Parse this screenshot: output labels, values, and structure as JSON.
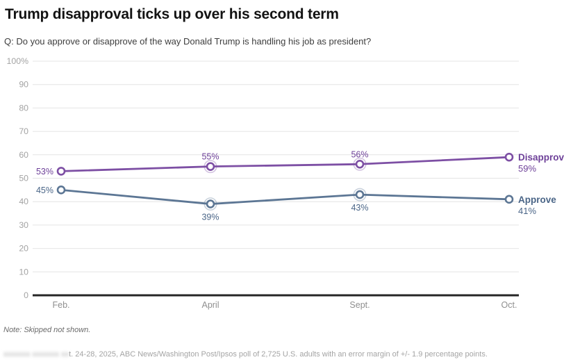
{
  "header": {
    "title": "Trump disapproval ticks up over his second term",
    "subtitle": "Q: Do you approve or disapprove of the way Donald Trump is handling his job as president?"
  },
  "chart_data": {
    "type": "line",
    "categories": [
      "Feb.",
      "April",
      "Sept.",
      "Oct."
    ],
    "series": [
      {
        "name": "Disapprove",
        "values": [
          53,
          55,
          56,
          59
        ],
        "point_labels": [
          "53%",
          "55%",
          "56%",
          "59%"
        ],
        "label_positions": [
          "left",
          "above",
          "above",
          "legend"
        ],
        "halo_points": [
          1,
          2
        ],
        "color": "#7d4fa4",
        "label_color": "#6e4199"
      },
      {
        "name": "Approve",
        "values": [
          45,
          39,
          43,
          41
        ],
        "point_labels": [
          "45%",
          "39%",
          "43%",
          "41%"
        ],
        "label_positions": [
          "left",
          "below",
          "below",
          "legend"
        ],
        "halo_points": [
          1,
          2
        ],
        "color": "#5c7694",
        "label_color": "#4a6587"
      }
    ],
    "yticks": {
      "values": [
        100,
        90,
        80,
        70,
        60,
        50,
        40,
        30,
        20,
        10,
        0
      ],
      "labels": [
        "100%",
        "90",
        "80",
        "70",
        "60",
        "50",
        "40",
        "30",
        "20",
        "10",
        "0"
      ]
    },
    "ylim": [
      0,
      100
    ],
    "grid": true,
    "legend_position": "right-of-line-end",
    "colors": {
      "gridline": "#e4e4e4",
      "axis": "#262626",
      "ytick_label": "#a3a3a3",
      "xtick_label": "#8f8f8f"
    }
  },
  "footer": {
    "note": "Note: Skipped not shown.",
    "source_redacted_placeholder": "xxxxxxx xxxxxxx xx",
    "source_visible": "t. 24-28, 2025, ABC News/Washington Post/Ipsos poll of 2,725 U.S. adults with an error margin of +/- 1.9 percentage points."
  }
}
